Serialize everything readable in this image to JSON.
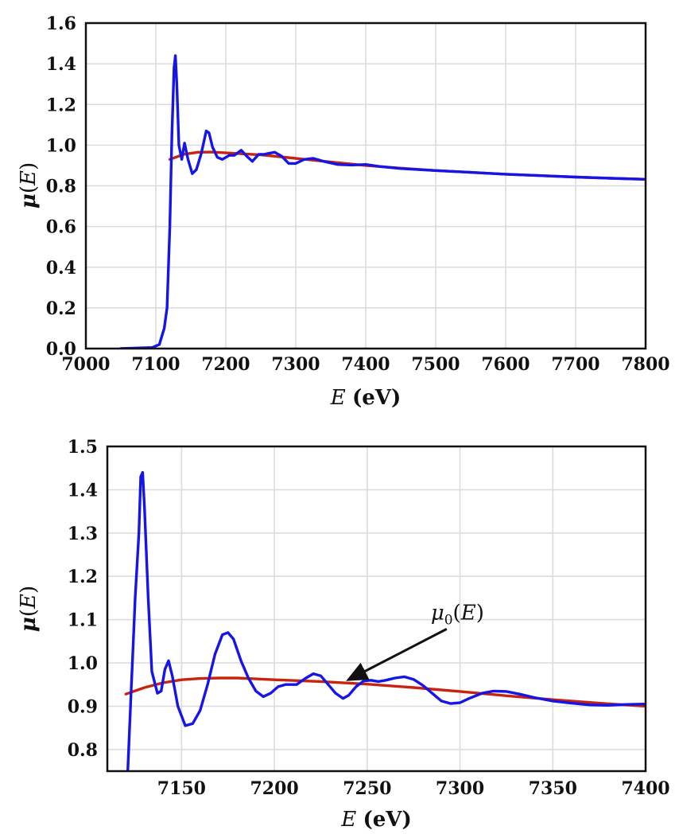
{
  "chart_data": [
    {
      "type": "line",
      "title": "",
      "xlabel": "E (eV)",
      "ylabel": "μ(E)",
      "xlabel_parts": {
        "var": "E",
        "unit": "(eV)"
      },
      "ylabel_parts": {
        "var": "μ",
        "open": "(",
        "arg": "E",
        "close": ")"
      },
      "xlim": [
        7000,
        7800
      ],
      "ylim": [
        0.0,
        1.6
      ],
      "xticks": [
        7000,
        7100,
        7200,
        7300,
        7400,
        7500,
        7600,
        7700,
        7800
      ],
      "yticks": [
        0.0,
        0.2,
        0.4,
        0.6,
        0.8,
        1.0,
        1.2,
        1.4,
        1.6
      ],
      "ytick_labels": [
        "0.0",
        "0.2",
        "0.4",
        "0.6",
        "0.8",
        "1.0",
        "1.2",
        "1.4",
        "1.6"
      ],
      "grid": true,
      "colors": {
        "measured": "#1515e8",
        "background": "#c8230f"
      },
      "series": [
        {
          "key": "measured",
          "x": [
            7050,
            7095,
            7105,
            7112,
            7116,
            7120,
            7123,
            7126,
            7128,
            7130,
            7133,
            7137,
            7141,
            7146,
            7152,
            7158,
            7165,
            7172,
            7176,
            7181,
            7188,
            7195,
            7205,
            7212,
            7222,
            7230,
            7238,
            7247,
            7255,
            7262,
            7270,
            7280,
            7290,
            7300,
            7312,
            7325,
            7340,
            7360,
            7380,
            7400,
            7420,
            7450,
            7500,
            7550,
            7600,
            7650,
            7700,
            7750,
            7800
          ],
          "y": [
            0.0,
            0.005,
            0.02,
            0.1,
            0.2,
            0.6,
            1.05,
            1.38,
            1.44,
            1.3,
            1.0,
            0.93,
            1.01,
            0.93,
            0.86,
            0.88,
            0.96,
            1.07,
            1.06,
            0.99,
            0.94,
            0.93,
            0.95,
            0.95,
            0.975,
            0.945,
            0.92,
            0.955,
            0.955,
            0.96,
            0.965,
            0.945,
            0.91,
            0.91,
            0.93,
            0.935,
            0.92,
            0.905,
            0.902,
            0.905,
            0.895,
            0.885,
            0.875,
            0.866,
            0.857,
            0.85,
            0.843,
            0.837,
            0.832
          ]
        },
        {
          "key": "background",
          "x": [
            7120,
            7140,
            7160,
            7180,
            7200,
            7250,
            7300,
            7350,
            7400,
            7450,
            7500,
            7550,
            7600,
            7650,
            7700,
            7750,
            7800
          ],
          "y": [
            0.93,
            0.955,
            0.965,
            0.966,
            0.962,
            0.952,
            0.935,
            0.917,
            0.9,
            0.887,
            0.875,
            0.866,
            0.857,
            0.85,
            0.843,
            0.837,
            0.832
          ]
        }
      ]
    },
    {
      "type": "line",
      "title": "",
      "xlabel": "E (eV)",
      "ylabel": "μ(E)",
      "xlabel_parts": {
        "var": "E",
        "unit": "(eV)"
      },
      "ylabel_parts": {
        "var": "μ",
        "open": "(",
        "arg": "E",
        "close": ")"
      },
      "xlim": [
        7110,
        7400
      ],
      "ylim": [
        0.75,
        1.5
      ],
      "xticks": [
        7150,
        7200,
        7250,
        7300,
        7350,
        7400
      ],
      "yticks": [
        0.8,
        0.9,
        1.0,
        1.1,
        1.2,
        1.3,
        1.4,
        1.5
      ],
      "ytick_labels": [
        "0.8",
        "0.9",
        "1.0",
        "1.1",
        "1.2",
        "1.3",
        "1.4",
        "1.5"
      ],
      "grid": true,
      "colors": {
        "measured": "#1515e8",
        "background": "#c8230f"
      },
      "annotation": {
        "var": "μ",
        "sub": "0",
        "open": "(",
        "arg": "E",
        "close": ")",
        "text": "μ0(E)",
        "arrow_to": {
          "x": 7238,
          "y": 0.957
        }
      },
      "series": [
        {
          "key": "measured",
          "x": [
            7121,
            7123,
            7124,
            7125,
            7127,
            7128,
            7129,
            7130,
            7132,
            7134,
            7137,
            7139,
            7141,
            7143,
            7145,
            7148,
            7152,
            7156,
            7160,
            7164,
            7168,
            7172,
            7175,
            7178,
            7182,
            7186,
            7190,
            7194,
            7198,
            7202,
            7206,
            7212,
            7217,
            7221,
            7225,
            7229,
            7233,
            7237,
            7240,
            7244,
            7248,
            7252,
            7256,
            7260,
            7265,
            7270,
            7275,
            7280,
            7285,
            7290,
            7295,
            7300,
            7305,
            7312,
            7318,
            7325,
            7332,
            7340,
            7350,
            7360,
            7370,
            7380,
            7390,
            7400
          ],
          "y": [
            0.75,
            0.95,
            1.05,
            1.15,
            1.3,
            1.43,
            1.44,
            1.36,
            1.15,
            0.98,
            0.93,
            0.935,
            0.985,
            1.005,
            0.97,
            0.9,
            0.855,
            0.86,
            0.89,
            0.95,
            1.02,
            1.065,
            1.07,
            1.055,
            1.005,
            0.965,
            0.935,
            0.922,
            0.93,
            0.945,
            0.95,
            0.95,
            0.965,
            0.975,
            0.97,
            0.95,
            0.93,
            0.918,
            0.925,
            0.945,
            0.958,
            0.96,
            0.957,
            0.96,
            0.965,
            0.968,
            0.962,
            0.948,
            0.93,
            0.912,
            0.906,
            0.908,
            0.918,
            0.93,
            0.935,
            0.934,
            0.928,
            0.92,
            0.912,
            0.907,
            0.903,
            0.902,
            0.904,
            0.905
          ]
        },
        {
          "key": "background",
          "x": [
            7120,
            7130,
            7140,
            7150,
            7160,
            7170,
            7180,
            7190,
            7200,
            7225,
            7250,
            7275,
            7300,
            7325,
            7350,
            7375,
            7400
          ],
          "y": [
            0.928,
            0.943,
            0.954,
            0.961,
            0.964,
            0.965,
            0.965,
            0.963,
            0.961,
            0.957,
            0.951,
            0.943,
            0.934,
            0.924,
            0.915,
            0.907,
            0.9
          ]
        }
      ]
    }
  ]
}
